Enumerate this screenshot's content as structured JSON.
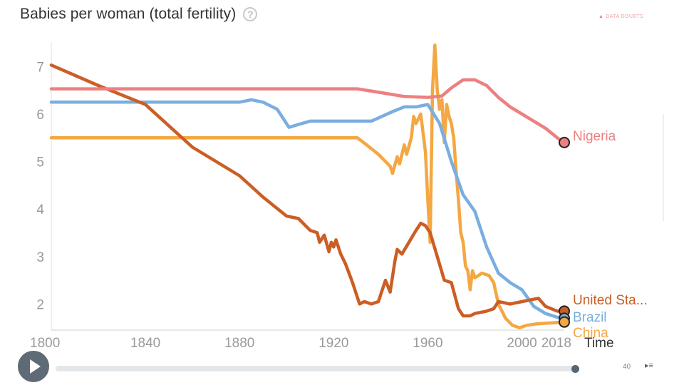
{
  "title": "Babies per woman (total fertility)",
  "help_icon": "help-circle-icon",
  "data_doubts": "DATA DOUBTS",
  "warning_icon": "warning-triangle-icon",
  "speed_label": "40",
  "speed_icon": "playback-speed-icon",
  "play_icon": "play-icon",
  "chart_data": {
    "type": "line",
    "title": "Babies per woman (total fertility)",
    "xlabel": "Time",
    "ylabel": "Babies per woman (total fertility)",
    "xlim": [
      1800,
      2018
    ],
    "ylim": [
      1.45,
      7.5
    ],
    "x_ticks": [
      "1800",
      "1840",
      "1880",
      "1920",
      "1960",
      "2000",
      "2018"
    ],
    "y_ticks": [
      "2",
      "3",
      "4",
      "5",
      "6",
      "7"
    ],
    "grid": false,
    "legend": "end-of-line labels (right)",
    "series": [
      {
        "name": "Nigeria",
        "color": "#ee7f80",
        "points": [
          [
            1800,
            6.53
          ],
          [
            1930,
            6.53
          ],
          [
            1940,
            6.45
          ],
          [
            1950,
            6.37
          ],
          [
            1960,
            6.35
          ],
          [
            1966,
            6.38
          ],
          [
            1970,
            6.55
          ],
          [
            1975,
            6.72
          ],
          [
            1980,
            6.72
          ],
          [
            1985,
            6.6
          ],
          [
            1990,
            6.35
          ],
          [
            1995,
            6.15
          ],
          [
            2000,
            6.0
          ],
          [
            2005,
            5.85
          ],
          [
            2010,
            5.7
          ],
          [
            2015,
            5.5
          ],
          [
            2018,
            5.4
          ]
        ]
      },
      {
        "name": "Brazil",
        "color": "#7aaee0",
        "points": [
          [
            1800,
            6.25
          ],
          [
            1880,
            6.25
          ],
          [
            1885,
            6.3
          ],
          [
            1890,
            6.25
          ],
          [
            1896,
            6.1
          ],
          [
            1901,
            5.72
          ],
          [
            1905,
            5.78
          ],
          [
            1910,
            5.85
          ],
          [
            1936,
            5.85
          ],
          [
            1945,
            6.05
          ],
          [
            1950,
            6.15
          ],
          [
            1955,
            6.15
          ],
          [
            1960,
            6.2
          ],
          [
            1965,
            5.8
          ],
          [
            1970,
            5.0
          ],
          [
            1975,
            4.3
          ],
          [
            1980,
            3.95
          ],
          [
            1985,
            3.2
          ],
          [
            1990,
            2.65
          ],
          [
            1995,
            2.45
          ],
          [
            2000,
            2.3
          ],
          [
            2005,
            1.95
          ],
          [
            2010,
            1.8
          ],
          [
            2015,
            1.72
          ],
          [
            2018,
            1.7
          ]
        ]
      },
      {
        "name": "China",
        "color": "#f4a742",
        "points": [
          [
            1800,
            5.5
          ],
          [
            1930,
            5.5
          ],
          [
            1934,
            5.35
          ],
          [
            1939,
            5.15
          ],
          [
            1944,
            4.9
          ],
          [
            1945,
            4.75
          ],
          [
            1947,
            5.1
          ],
          [
            1948,
            4.95
          ],
          [
            1950,
            5.35
          ],
          [
            1951,
            5.15
          ],
          [
            1953,
            5.5
          ],
          [
            1954,
            5.95
          ],
          [
            1955,
            5.8
          ],
          [
            1957,
            6.0
          ],
          [
            1958,
            5.6
          ],
          [
            1959,
            5.2
          ],
          [
            1960,
            4.2
          ],
          [
            1961,
            3.3
          ],
          [
            1962,
            6.5
          ],
          [
            1963,
            7.45
          ],
          [
            1964,
            6.5
          ],
          [
            1965,
            6.1
          ],
          [
            1966,
            6.3
          ],
          [
            1967,
            5.4
          ],
          [
            1968,
            6.2
          ],
          [
            1969,
            5.95
          ],
          [
            1970,
            5.8
          ],
          [
            1971,
            5.5
          ],
          [
            1972,
            4.8
          ],
          [
            1973,
            4.2
          ],
          [
            1974,
            3.5
          ],
          [
            1975,
            3.3
          ],
          [
            1976,
            2.8
          ],
          [
            1977,
            2.7
          ],
          [
            1978,
            2.3
          ],
          [
            1979,
            2.7
          ],
          [
            1980,
            2.55
          ],
          [
            1983,
            2.65
          ],
          [
            1986,
            2.6
          ],
          [
            1988,
            2.45
          ],
          [
            1990,
            2.0
          ],
          [
            1993,
            1.7
          ],
          [
            1996,
            1.55
          ],
          [
            1999,
            1.5
          ],
          [
            2002,
            1.55
          ],
          [
            2006,
            1.58
          ],
          [
            2012,
            1.6
          ],
          [
            2018,
            1.62
          ]
        ]
      },
      {
        "name": "United States",
        "color": "#cb5e25",
        "points": [
          [
            1800,
            7.03
          ],
          [
            1820,
            6.6
          ],
          [
            1840,
            6.2
          ],
          [
            1850,
            5.75
          ],
          [
            1860,
            5.3
          ],
          [
            1870,
            5.0
          ],
          [
            1880,
            4.7
          ],
          [
            1890,
            4.25
          ],
          [
            1900,
            3.85
          ],
          [
            1905,
            3.8
          ],
          [
            1910,
            3.55
          ],
          [
            1913,
            3.5
          ],
          [
            1914,
            3.3
          ],
          [
            1916,
            3.45
          ],
          [
            1918,
            3.1
          ],
          [
            1919,
            3.3
          ],
          [
            1920,
            3.2
          ],
          [
            1921,
            3.35
          ],
          [
            1923,
            3.05
          ],
          [
            1925,
            2.85
          ],
          [
            1928,
            2.45
          ],
          [
            1931,
            2.0
          ],
          [
            1933,
            2.05
          ],
          [
            1936,
            2.0
          ],
          [
            1939,
            2.05
          ],
          [
            1942,
            2.5
          ],
          [
            1944,
            2.25
          ],
          [
            1946,
            2.9
          ],
          [
            1947,
            3.15
          ],
          [
            1949,
            3.05
          ],
          [
            1952,
            3.3
          ],
          [
            1955,
            3.55
          ],
          [
            1957,
            3.7
          ],
          [
            1959,
            3.65
          ],
          [
            1961,
            3.5
          ],
          [
            1964,
            3.0
          ],
          [
            1967,
            2.5
          ],
          [
            1970,
            2.45
          ],
          [
            1973,
            1.9
          ],
          [
            1975,
            1.75
          ],
          [
            1978,
            1.75
          ],
          [
            1980,
            1.8
          ],
          [
            1985,
            1.85
          ],
          [
            1988,
            1.9
          ],
          [
            1990,
            2.05
          ],
          [
            1995,
            2.0
          ],
          [
            2000,
            2.05
          ],
          [
            2005,
            2.1
          ],
          [
            2007,
            2.12
          ],
          [
            2010,
            1.95
          ],
          [
            2015,
            1.85
          ],
          [
            2018,
            1.85
          ]
        ]
      }
    ],
    "end_labels": [
      {
        "series": "Nigeria",
        "text": "Nigeria"
      },
      {
        "series": "United States",
        "text": "United Sta..."
      },
      {
        "series": "Brazil",
        "text": "Brazil"
      },
      {
        "series": "China",
        "text": "China"
      }
    ]
  }
}
